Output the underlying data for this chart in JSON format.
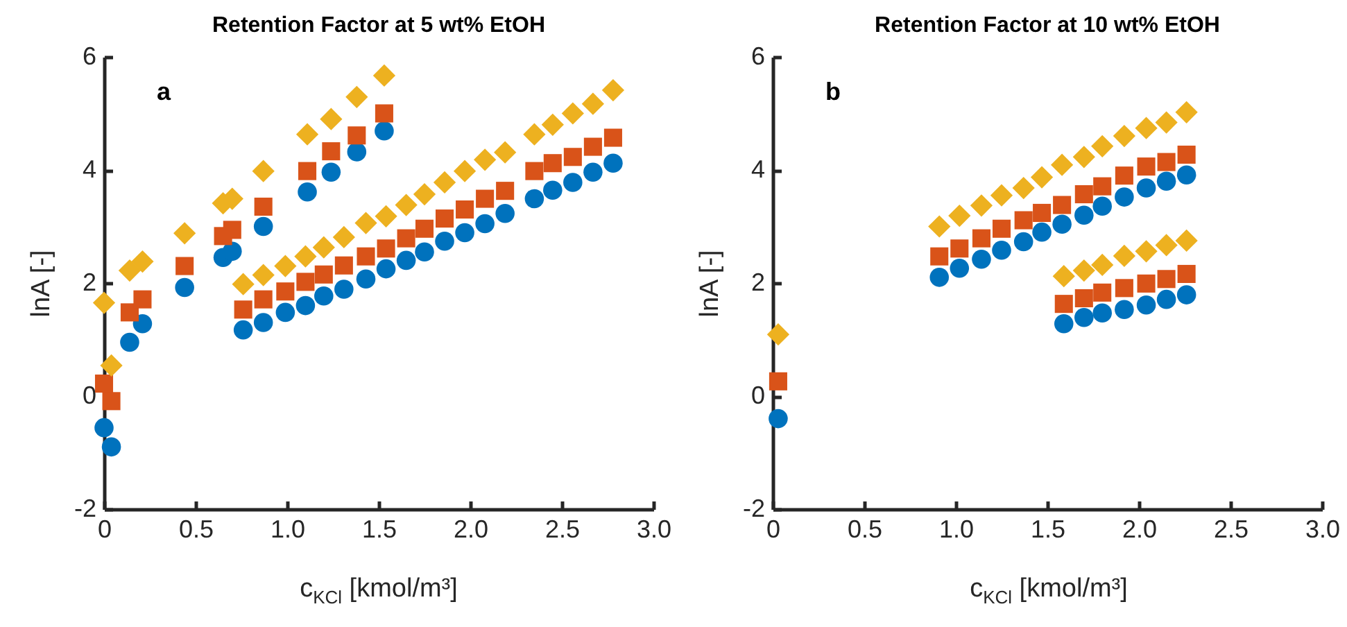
{
  "chart_data": [
    {
      "type": "scatter",
      "title": "Retention Factor at 5 wt% EtOH",
      "xlabel": "c$_{KCl}$ [kmol/m³]",
      "ylabel": "lnA [-]",
      "annotations": [
        "a"
      ],
      "xlim": [
        0,
        3
      ],
      "ylim": [
        -2,
        6
      ],
      "xticks": [
        0,
        0.5,
        {
          "value": 1,
          "label": "1.0"
        },
        1.5,
        {
          "value": 2,
          "label": "2.0"
        },
        2.5,
        {
          "value": 3,
          "label": "3.0"
        }
      ],
      "yticks": [
        -2,
        0,
        2,
        4,
        6
      ],
      "series": [
        {
          "color": "#0072bd",
          "marker": "circle",
          "x": [
            0,
            0.14,
            0.21,
            0.44,
            0.65,
            0.7,
            0.87,
            1.11,
            1.24,
            1.38,
            1.53
          ],
          "values": [
            -0.56,
            0.95,
            1.28,
            1.92,
            2.45,
            2.56,
            3.0,
            3.61,
            3.96,
            4.32,
            4.69
          ]
        },
        {
          "color": "#d95319",
          "marker": "square",
          "x": [
            0,
            0.14,
            0.21,
            0.44,
            0.65,
            0.7,
            0.87,
            1.11,
            1.24,
            1.38,
            1.53
          ],
          "values": [
            0.22,
            1.48,
            1.71,
            2.3,
            2.83,
            2.94,
            3.35,
            3.98,
            4.33,
            4.61,
            5.0
          ]
        },
        {
          "color": "#edb120",
          "marker": "diamond",
          "x": [
            0,
            0.14,
            0.21,
            0.44,
            0.65,
            0.7,
            0.87,
            1.11,
            1.24,
            1.38,
            1.53
          ],
          "values": [
            1.65,
            2.22,
            2.38,
            2.88,
            3.41,
            3.49,
            3.98,
            4.63,
            4.9,
            5.29,
            5.67
          ]
        },
        {
          "color": "#0072bd",
          "marker": "circle",
          "x": [
            0.04,
            0.76,
            0.87,
            0.99,
            1.1,
            1.2,
            1.31,
            1.43,
            1.54,
            1.65,
            1.75,
            1.86,
            1.97,
            2.08,
            2.19,
            2.35,
            2.45,
            2.56,
            2.67,
            2.78
          ],
          "values": [
            -0.9,
            1.17,
            1.3,
            1.48,
            1.6,
            1.77,
            1.89,
            2.07,
            2.25,
            2.4,
            2.55,
            2.74,
            2.89,
            3.05,
            3.23,
            3.49,
            3.64,
            3.78,
            3.96,
            4.12
          ]
        },
        {
          "color": "#d95319",
          "marker": "square",
          "x": [
            0.04,
            0.76,
            0.87,
            0.99,
            1.1,
            1.2,
            1.31,
            1.43,
            1.54,
            1.65,
            1.75,
            1.86,
            1.97,
            2.08,
            2.19,
            2.35,
            2.45,
            2.56,
            2.67,
            2.78
          ],
          "values": [
            -0.09,
            1.53,
            1.71,
            1.85,
            2.02,
            2.15,
            2.31,
            2.47,
            2.61,
            2.79,
            2.96,
            3.14,
            3.3,
            3.49,
            3.63,
            3.98,
            4.12,
            4.23,
            4.41,
            4.57
          ]
        },
        {
          "color": "#edb120",
          "marker": "diamond",
          "x": [
            0.04,
            0.76,
            0.87,
            0.99,
            1.1,
            1.2,
            1.31,
            1.43,
            1.54,
            1.65,
            1.75,
            1.86,
            1.97,
            2.08,
            2.19,
            2.35,
            2.45,
            2.56,
            2.67,
            2.78
          ],
          "values": [
            0.54,
            1.98,
            2.14,
            2.3,
            2.47,
            2.63,
            2.81,
            3.06,
            3.18,
            3.38,
            3.57,
            3.78,
            3.98,
            4.18,
            4.31,
            4.63,
            4.8,
            5.0,
            5.17,
            5.41
          ]
        }
      ]
    },
    {
      "type": "scatter",
      "title": "Retention Factor at 10 wt% EtOH",
      "xlabel": "c$_{KCl}$ [kmol/m³]",
      "ylabel": "lnA [-]",
      "annotations": [
        "b"
      ],
      "xlim": [
        0,
        3
      ],
      "ylim": [
        -2,
        6
      ],
      "xticks": [
        0,
        0.5,
        {
          "value": 1,
          "label": "1.0"
        },
        1.5,
        {
          "value": 2,
          "label": "2.0"
        },
        2.5,
        {
          "value": 3,
          "label": "3.0"
        }
      ],
      "yticks": [
        -2,
        0,
        2,
        4,
        6
      ],
      "series": [
        {
          "color": "#0072bd",
          "marker": "circle",
          "x": [
            0.03,
            0.91,
            1.02,
            1.14,
            1.25,
            1.37,
            1.47,
            1.58,
            1.7,
            1.8,
            1.92,
            2.04,
            2.15,
            2.26
          ],
          "values": [
            -0.4,
            2.1,
            2.26,
            2.42,
            2.58,
            2.73,
            2.9,
            3.04,
            3.2,
            3.36,
            3.52,
            3.68,
            3.8,
            3.91
          ]
        },
        {
          "color": "#d95319",
          "marker": "square",
          "x": [
            0.03,
            0.91,
            1.02,
            1.14,
            1.25,
            1.37,
            1.47,
            1.58,
            1.7,
            1.8,
            1.92,
            2.04,
            2.15,
            2.26
          ],
          "values": [
            0.26,
            2.47,
            2.61,
            2.79,
            2.96,
            3.11,
            3.24,
            3.38,
            3.57,
            3.71,
            3.9,
            4.06,
            4.14,
            4.27
          ]
        },
        {
          "color": "#edb120",
          "marker": "diamond",
          "x": [
            0.03,
            0.91,
            1.02,
            1.14,
            1.25,
            1.37,
            1.47,
            1.58,
            1.7,
            1.8,
            1.92,
            2.04,
            2.15,
            2.26
          ],
          "values": [
            1.09,
            3.0,
            3.19,
            3.37,
            3.55,
            3.68,
            3.87,
            4.09,
            4.23,
            4.42,
            4.6,
            4.74,
            4.84,
            5.02
          ]
        },
        {
          "color": "#0072bd",
          "marker": "circle",
          "x": [
            1.59,
            1.7,
            1.8,
            1.92,
            2.04,
            2.15,
            2.26
          ],
          "values": [
            1.28,
            1.39,
            1.47,
            1.53,
            1.61,
            1.71,
            1.79
          ]
        },
        {
          "color": "#d95319",
          "marker": "square",
          "x": [
            1.59,
            1.7,
            1.8,
            1.92,
            2.04,
            2.15,
            2.26
          ],
          "values": [
            1.63,
            1.73,
            1.83,
            1.91,
            1.99,
            2.07,
            2.16
          ]
        },
        {
          "color": "#edb120",
          "marker": "diamond",
          "x": [
            1.59,
            1.7,
            1.8,
            1.92,
            2.04,
            2.15,
            2.26
          ],
          "values": [
            2.12,
            2.22,
            2.32,
            2.48,
            2.56,
            2.67,
            2.75
          ]
        }
      ]
    }
  ]
}
